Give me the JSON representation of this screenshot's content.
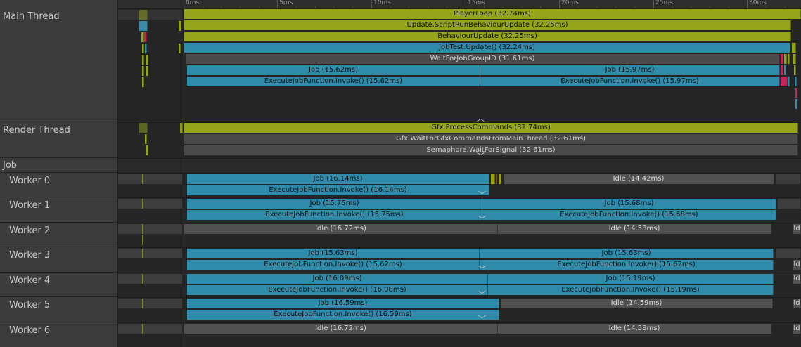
{
  "threads": {
    "main": "Main Thread",
    "render": "Render Thread",
    "job_group": "Job",
    "workers": [
      "Worker 0",
      "Worker 1",
      "Worker 2",
      "Worker 3",
      "Worker 4",
      "Worker 5",
      "Worker 6"
    ]
  },
  "ruler": {
    "ticks": [
      "0ms",
      "5ms",
      "10ms",
      "15ms",
      "20ms",
      "25ms",
      "30ms"
    ]
  },
  "main_thread": {
    "player_loop": "PlayerLoop (32.74ms)",
    "script_update": "Update.ScriptRunBehaviourUpdate (32.25ms)",
    "behaviour_update": "BehaviourUpdate (32.25ms)",
    "jobtest_update": "JobTest.Update() (32.24ms)",
    "wait_for_job": "WaitForJobGroupID (31.61ms)",
    "job_a": "Job (15.62ms)",
    "job_b": "Job (15.97ms)",
    "exec_a": "ExecuteJobFunction.Invoke() (15.62ms)",
    "exec_b": "ExecuteJobFunction.Invoke() (15.97ms)"
  },
  "render_thread": {
    "process_commands": "Gfx.ProcessCommands (32.74ms)",
    "wait_commands": "Gfx.WaitForGfxCommandsFromMainThread (32.61ms)",
    "semaphore": "Semaphore.WaitForSignal (32.61ms)"
  },
  "workers": {
    "w0": {
      "job": "Job (16.14ms)",
      "exec": "ExecuteJobFunction.Invoke() (16.14ms)",
      "idle": "Idle (14.42ms)"
    },
    "w1": {
      "job_a": "Job (15.75ms)",
      "job_b": "Job (15.68ms)",
      "exec_a": "ExecuteJobFunction.Invoke() (15.75ms)",
      "exec_b": "ExecuteJobFunction.Invoke() (15.68ms)"
    },
    "w2": {
      "idle_a": "Idle (16.72ms)",
      "idle_b": "Idle (14.58ms)"
    },
    "w3": {
      "job_a": "Job (15.63ms)",
      "job_b": "Job (15.63ms)",
      "exec_a": "ExecuteJobFunction.Invoke() (15.62ms)",
      "exec_b": "ExecuteJobFunction.Invoke() (15.62ms)"
    },
    "w4": {
      "job_a": "Job (16.09ms)",
      "job_b": "Job (15.19ms)",
      "exec_a": "ExecuteJobFunction.Invoke() (16.08ms)",
      "exec_b": "ExecuteJobFunction.Invoke() (15.19ms)"
    },
    "w5": {
      "job": "Job (16.59ms)",
      "exec": "ExecuteJobFunction.Invoke() (16.59ms)",
      "idle": "Idle (14.59ms)"
    },
    "w6": {
      "idle_a": "Idle (16.72ms)",
      "idle_b": "Idle (14.58ms)"
    }
  },
  "truncated_label": "Id",
  "colors": {
    "olive": "#94a51c",
    "blue": "#2f8ba9",
    "idle": "#505050",
    "red": "#c22656"
  },
  "icons": {
    "collapse": "chevron-up-icon",
    "expand": "chevron-down-icon"
  }
}
